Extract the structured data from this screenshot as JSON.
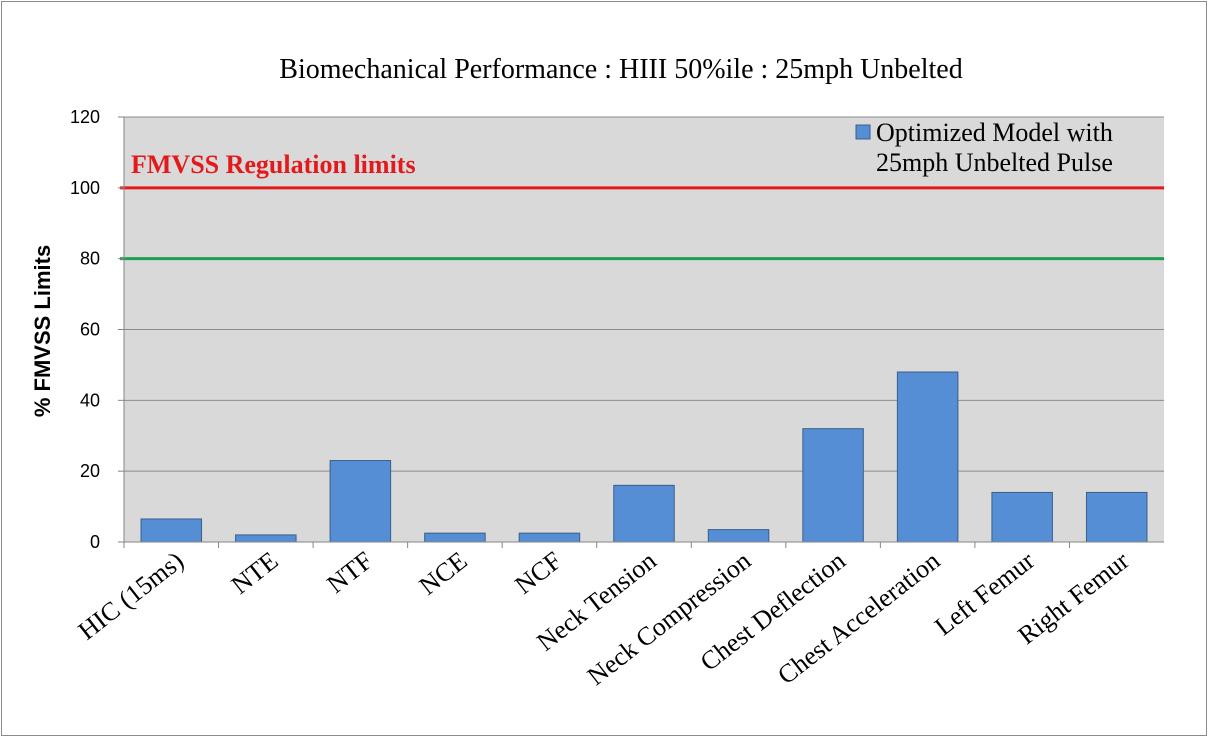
{
  "chart_data": {
    "type": "bar",
    "title": "Biomechanical Performance : HIII 50%ile : 25mph Unbelted",
    "xlabel": "",
    "ylabel": "% FMVSS Limits",
    "ylim": [
      0,
      120
    ],
    "yticks": [
      0,
      20,
      40,
      60,
      80,
      100,
      120
    ],
    "grid": true,
    "legend_position": "top-right",
    "categories": [
      "HIC (15ms)",
      "NTE",
      "NTF",
      "NCE",
      "NCF",
      "Neck Tension",
      "Neck Compression",
      "Chest Deflection",
      "Chest Acceleration",
      "Left Femur",
      "Right Femur"
    ],
    "series": [
      {
        "name": "Optimized Model with 25mph Unbelted Pulse",
        "legend_lines": [
          "Optimized Model with",
          "25mph Unbelted Pulse"
        ],
        "values": [
          6.5,
          2,
          23,
          2.5,
          2.5,
          16,
          3.5,
          32,
          48,
          14,
          14
        ],
        "color": "#558ED5"
      }
    ],
    "reference_lines": [
      {
        "value": 100,
        "color": "#E31A1C"
      },
      {
        "value": 80,
        "color": "#1E9E50"
      }
    ],
    "annotations": [
      {
        "text": "FMVSS Regulation limits",
        "color": "#E31A1C"
      }
    ],
    "colors": {
      "plot_background": "#D9D9D9",
      "gridline": "#8C8C8C",
      "bar_border": "#3A5F8C"
    }
  }
}
